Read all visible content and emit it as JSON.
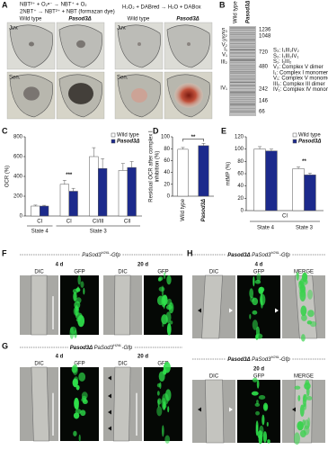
{
  "panels": {
    "A": {
      "label": "A",
      "eq1": "NBT²⁺ + O₂•⁻ → NBT⁺ + O₂",
      "eq2": "2NBT⁺ → NBT²⁺ + NBT (formazan dye)",
      "eq3": "H₂O₂ + DABred → H₂O + DABox",
      "columns": [
        "Wild type",
        "Pasod3Δ",
        "Wild type",
        "Pasod3Δ"
      ],
      "rows": [
        "Juv.",
        "Sen.",
        "Juv.",
        "Sen."
      ]
    },
    "B": {
      "label": "B",
      "lanes": [
        "Wild type",
        "Pasod3Δ"
      ],
      "markers": [
        "1236",
        "1048",
        "720",
        "480",
        "242",
        "146",
        "66"
      ],
      "bands": [
        "S₃",
        "S₂",
        "S₁",
        "V₂",
        "I₁",
        "V₁",
        "III₂",
        "IV₁"
      ],
      "legend": [
        "S₃: I₁III₂IV₂",
        "S₂: I₁III₂IV₁",
        "S₁: I₁III₂",
        "V₂: Complex V dimer",
        "I₁: Complex I monomer",
        "V₁: Complex V monomer",
        "III₂: Complex III dimer",
        "IV₁: Complex IV monomer"
      ]
    }
  },
  "chart_data": [
    {
      "type": "bar",
      "label": "C",
      "y_label": "OCR (%)",
      "ylim": [
        0,
        800
      ],
      "yticks": [
        0,
        200,
        400,
        600,
        800
      ],
      "legend": "upper right",
      "groups": [
        {
          "name": "State 4",
          "categories": [
            "CI"
          ]
        },
        {
          "name": "State 3",
          "categories": [
            "CI",
            "CI/III",
            "CII"
          ]
        }
      ],
      "series": [
        {
          "name": "Wild type",
          "color": "#ffffff",
          "values": [
            100,
            320,
            600,
            460
          ],
          "errors": [
            10,
            40,
            90,
            70
          ]
        },
        {
          "name": "Pasod3Δ",
          "color": "#1c2a8c",
          "values": [
            100,
            250,
            480,
            490
          ],
          "errors": [
            8,
            30,
            100,
            60
          ]
        }
      ],
      "annotation": "***"
    },
    {
      "type": "bar",
      "label": "D",
      "y_label": [
        "Residual OCR after complex I",
        "inhibition (%)"
      ],
      "ylim": [
        0,
        100
      ],
      "yticks": [
        0,
        20,
        40,
        60,
        80,
        100
      ],
      "categories": [
        "Wild type",
        "Pasod3Δ"
      ],
      "values": [
        79,
        85
      ],
      "errors": [
        3,
        4
      ],
      "colors": [
        "#ffffff",
        "#1c2a8c"
      ],
      "annotation": "**"
    },
    {
      "type": "bar",
      "label": "E",
      "y_label": "mtMP (%)",
      "ylim": [
        0,
        120
      ],
      "yticks": [
        0,
        20,
        40,
        60,
        80,
        100,
        120
      ],
      "legend": "upper right",
      "group": "CI",
      "categories": [
        "State 4",
        "State 3"
      ],
      "series": [
        {
          "name": "Wild type",
          "color": "#ffffff",
          "values": [
            100,
            68
          ],
          "errors": [
            4,
            3
          ]
        },
        {
          "name": "Pasod3Δ",
          "color": "#1c2a8c",
          "values": [
            97,
            58
          ],
          "errors": [
            3,
            3
          ]
        }
      ],
      "annotation": "**"
    }
  ],
  "micro": [
    {
      "label": "F",
      "title": {
        "gene": "PaSod3",
        "sup": "H26L",
        "suffix": "-Gfp"
      },
      "sets": [
        {
          "day": "4 d",
          "columns": [
            "DIC",
            "GFP"
          ]
        },
        {
          "day": "20 d",
          "columns": [
            "DIC",
            "GFP"
          ]
        }
      ]
    },
    {
      "label": "G",
      "title": {
        "prefix": "Pasod3Δ ",
        "gene": "PaSod3",
        "sup": "H26L",
        "suffix": "-Gfp"
      },
      "sets": [
        {
          "day": "4 d",
          "columns": [
            "DIC",
            "GFP"
          ]
        },
        {
          "day": "20 d",
          "columns": [
            "DIC",
            "GFP"
          ]
        }
      ]
    },
    {
      "label": "H",
      "sets": [
        {
          "title": {
            "prefix": "Pasod3Δ ",
            "gene": "PaSod3",
            "sup": "H26L",
            "suffix": "-Gfp"
          },
          "day": "4 d",
          "columns": [
            "DIC",
            "GFP",
            "MERGE"
          ]
        },
        {
          "title": {
            "prefix": "Pasod3Δ ",
            "gene": "PaSod3",
            "sup": "H26L",
            "suffix": "-Gfp"
          },
          "day": "20 d",
          "columns": [
            "DIC",
            "GFP",
            "MERGE"
          ]
        }
      ]
    }
  ]
}
